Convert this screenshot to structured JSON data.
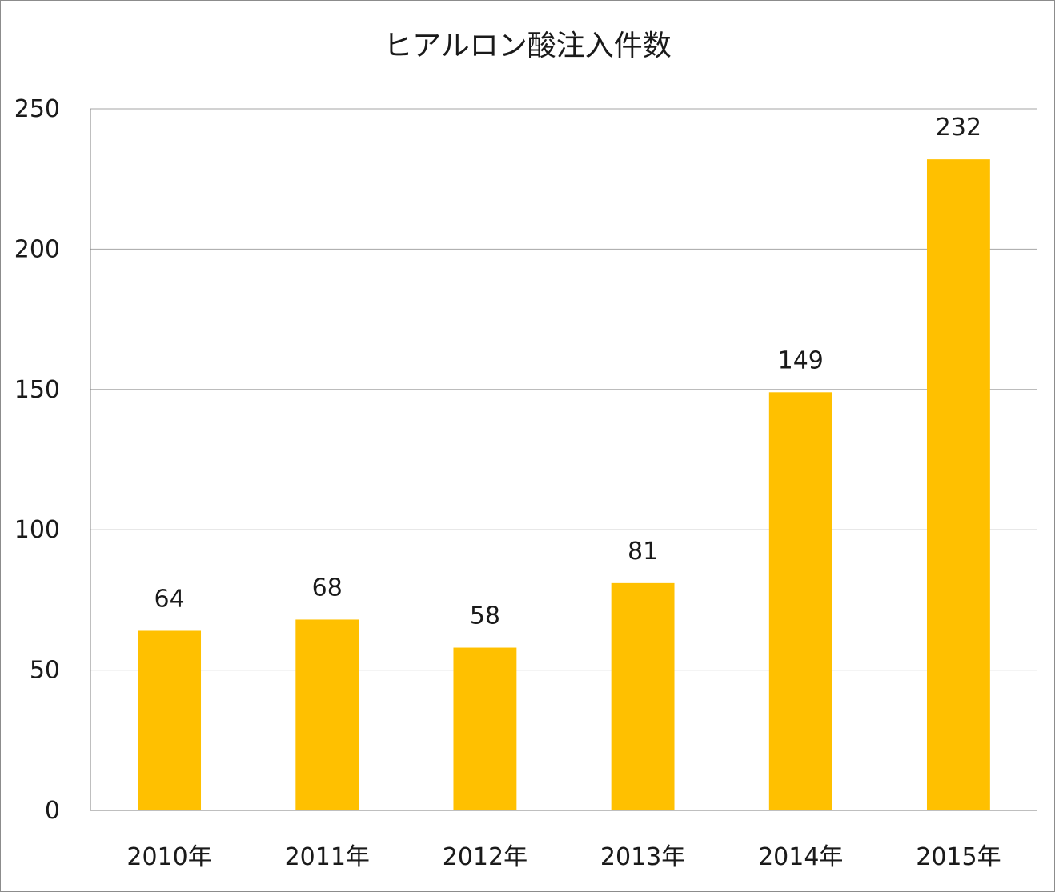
{
  "chart_data": {
    "type": "bar",
    "title": "ヒアルロン酸注入件数",
    "categories": [
      "2010年",
      "2011年",
      "2012年",
      "2013年",
      "2014年",
      "2015年"
    ],
    "series": [
      {
        "values": [
          64,
          68,
          58,
          81,
          149,
          232
        ]
      }
    ],
    "xlabel": "",
    "ylabel": "",
    "ylim": [
      0,
      250
    ],
    "yticks": [
      0,
      50,
      100,
      150,
      200,
      250
    ],
    "grid": true,
    "legend": "none",
    "data_labels": true,
    "colors": {
      "bar": "#FFC000",
      "grid": "#a6a6a6",
      "axis": "#7f7f7f",
      "text": "#1a1a1a"
    }
  }
}
